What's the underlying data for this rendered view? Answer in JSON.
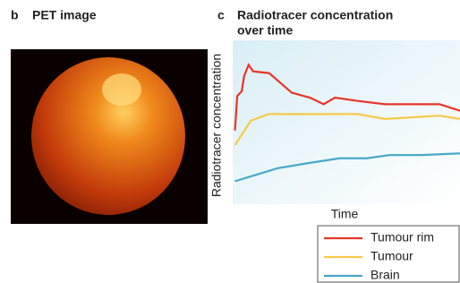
{
  "panel_b": {
    "label": "b",
    "title": "PET image"
  },
  "chart_data": {
    "type": "line",
    "panel_label": "c",
    "title": [
      "Radiotracer concentration",
      "over time"
    ],
    "x_label": "Time",
    "y_label": "Radiotracer concentration",
    "xlim": [
      0,
      100
    ],
    "ylim": [
      0,
      100
    ],
    "series": [
      {
        "name": "Tumour rim",
        "color": "#e8352a",
        "x": [
          1,
          2,
          4,
          5,
          7,
          9,
          16,
          26,
          34,
          40,
          45,
          55,
          67,
          79,
          91,
          100
        ],
        "values": [
          45,
          66,
          69,
          78,
          85,
          81,
          80,
          68,
          65,
          61,
          65,
          63,
          61,
          61,
          61,
          57
        ]
      },
      {
        "name": "Tumour",
        "color": "#f6c94a",
        "x": [
          1,
          8,
          16,
          35,
          55,
          67,
          79,
          91,
          100
        ],
        "values": [
          36,
          51,
          55,
          55,
          55,
          52,
          53,
          54,
          52
        ]
      },
      {
        "name": "Brain",
        "color": "#4aa9c9",
        "x": [
          1,
          8,
          20,
          33,
          47,
          59,
          69,
          83,
          100
        ],
        "values": [
          14,
          17,
          22,
          25,
          28,
          28,
          30,
          30,
          31
        ]
      }
    ]
  }
}
